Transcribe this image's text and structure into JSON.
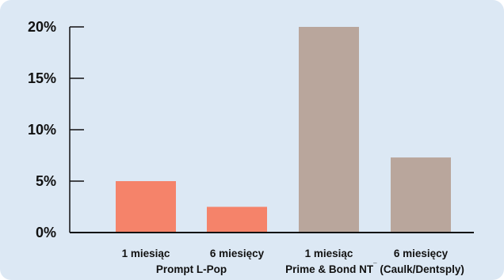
{
  "chart_data": {
    "type": "bar",
    "categories": [
      "1 miesiąc",
      "6 miesięcy",
      "1 miesiąc",
      "6 miesięcy"
    ],
    "values": [
      5,
      2.5,
      20,
      7.3
    ],
    "groups": [
      {
        "label": "Prompt L-Pop",
        "label_sup": "",
        "label_tail": "",
        "category_indices": [
          0,
          1
        ],
        "color": "#f5836a"
      },
      {
        "label": "Prime & Bond NT",
        "label_sup": "¯",
        "label_tail": " (Caulk/Dentsply)",
        "category_indices": [
          2,
          3
        ],
        "color": "#b9a69c"
      }
    ],
    "y_ticks": [
      "0%",
      "5%",
      "10%",
      "15%",
      "20%"
    ],
    "ylim": [
      0,
      20
    ],
    "grid": false,
    "background_color": "#dce8f4",
    "axis_color": "#111111"
  }
}
